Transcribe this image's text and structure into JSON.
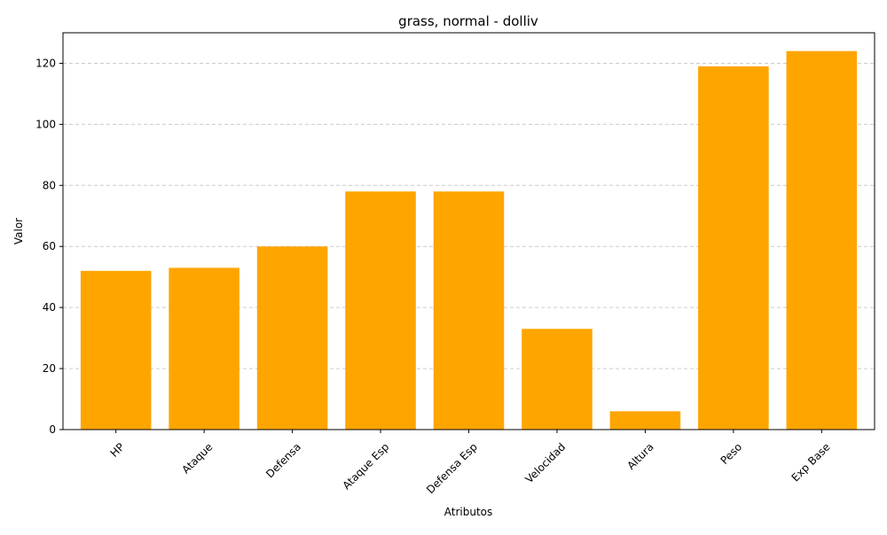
{
  "chart_data": {
    "type": "bar",
    "title": "grass, normal - dolliv",
    "xlabel": "Atributos",
    "ylabel": "Valor",
    "categories": [
      "HP",
      "Ataque",
      "Defensa",
      "Ataque Esp",
      "Defensa Esp",
      "Velocidad",
      "Altura",
      "Peso",
      "Exp Base"
    ],
    "values": [
      52,
      53,
      60,
      78,
      78,
      33,
      6,
      119,
      124
    ],
    "ylim": [
      0,
      130
    ],
    "yticks": [
      0,
      20,
      40,
      60,
      80,
      100,
      120
    ],
    "grid": "y-dashed",
    "bar_color": "#FFA500",
    "tick_label_rotation": 45
  }
}
